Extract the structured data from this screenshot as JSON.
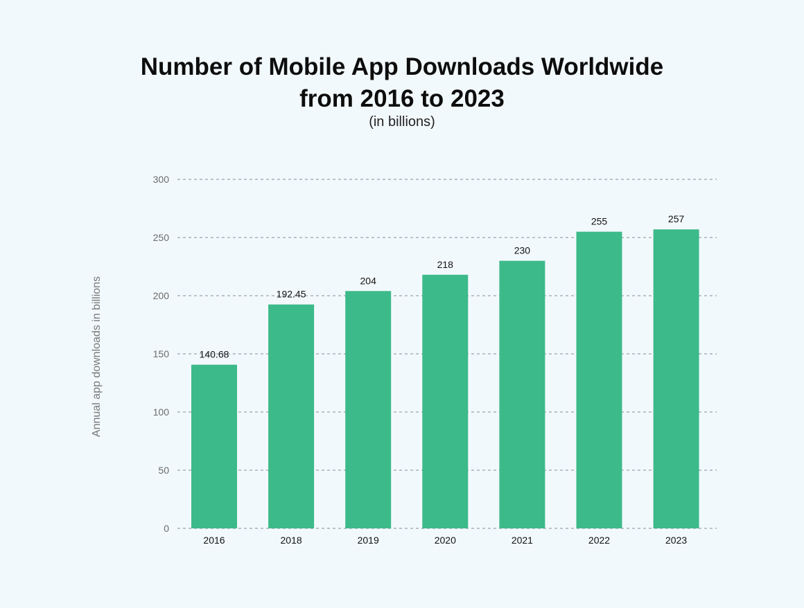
{
  "chart_data": {
    "type": "bar",
    "title_line1": "Number of Mobile App Downloads Worldwide",
    "title_line2": "from 2016 to 2023",
    "subtitle": "(in billions)",
    "xlabel": "",
    "ylabel": "Annual app downloads in billions",
    "categories": [
      "2016",
      "2018",
      "2019",
      "2020",
      "2021",
      "2022",
      "2023"
    ],
    "values": [
      140.68,
      192.45,
      204,
      218,
      230,
      255,
      257
    ],
    "data_labels": [
      "140.68",
      "192.45",
      "204",
      "218",
      "230",
      "255",
      "257"
    ],
    "ylim": [
      0,
      300
    ],
    "yticks": [
      0,
      50,
      100,
      150,
      200,
      250,
      300
    ],
    "grid": true,
    "grid_style": "dashed",
    "bar_color": "#3dba8a",
    "background": "#f2f9fc"
  }
}
